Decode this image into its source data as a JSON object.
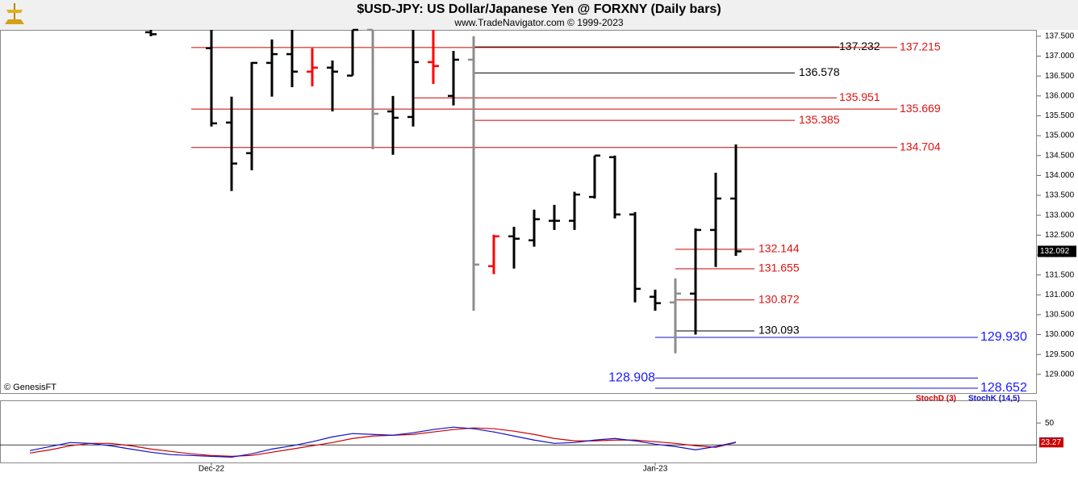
{
  "chart_data": [
    {
      "type": "ohlc",
      "title": "$USD-JPY:  US Dollar/Japanese Yen @ FORXNY  (Daily bars)",
      "subtitle": "www.TradeNavigator.com © 1999-2023",
      "source": "© GenesisFT",
      "categories": [
        null,
        null,
        null,
        null,
        null,
        null,
        null,
        null,
        null,
        "Dec-22",
        null,
        null,
        null,
        null,
        null,
        null,
        null,
        null,
        null,
        null,
        null,
        null,
        null,
        null,
        null,
        null,
        null,
        null,
        null,
        null,
        null,
        "Jan-23",
        null,
        null,
        null,
        null
      ],
      "open": [
        null,
        null,
        null,
        null,
        null,
        null,
        137.6,
        null,
        null,
        137.2,
        135.33,
        134.56,
        136.83,
        137.05,
        136.61,
        136.71,
        136.51,
        137.66,
        135.61,
        135.47,
        136.85,
        136.0,
        136.91,
        131.72,
        132.47,
        132.37,
        132.86,
        132.86,
        133.46,
        134.46,
        133.02,
        130.95,
        130.81,
        131.03,
        132.63,
        133.42
      ],
      "high": [
        null,
        null,
        null,
        null,
        null,
        null,
        137.66,
        null,
        null,
        137.66,
        135.98,
        136.85,
        137.42,
        137.66,
        137.2,
        136.89,
        137.66,
        137.66,
        136.0,
        137.66,
        137.66,
        137.13,
        137.5,
        132.51,
        132.71,
        133.14,
        133.26,
        133.59,
        134.5,
        134.5,
        133.08,
        131.13,
        131.41,
        132.67,
        134.07,
        134.78
      ],
      "low": [
        null,
        null,
        null,
        null,
        null,
        null,
        137.5,
        null,
        null,
        135.23,
        133.61,
        134.13,
        135.98,
        136.22,
        136.24,
        135.61,
        136.51,
        134.66,
        134.52,
        135.23,
        136.3,
        135.76,
        130.6,
        131.52,
        131.66,
        132.21,
        132.63,
        132.63,
        133.42,
        132.92,
        130.81,
        130.6,
        129.53,
        130.0,
        131.7,
        131.98
      ],
      "close": [
        null,
        null,
        null,
        null,
        null,
        null,
        137.55,
        null,
        null,
        135.31,
        134.3,
        136.83,
        137.05,
        136.61,
        136.71,
        136.61,
        137.66,
        135.55,
        135.45,
        136.85,
        136.75,
        136.91,
        131.76,
        132.47,
        132.41,
        132.9,
        132.86,
        133.52,
        134.5,
        133.02,
        131.15,
        130.79,
        131.03,
        132.63,
        133.42,
        132.092
      ],
      "colors": [
        null,
        null,
        null,
        null,
        null,
        null,
        "#000000",
        null,
        null,
        "#000000",
        "#000000",
        "#000000",
        "#000000",
        "#000000",
        "#ff0000",
        "#000000",
        "#000000",
        "#8c8c8c",
        "#000000",
        "#000000",
        "#ff0000",
        "#000000",
        "#8c8c8c",
        "#ff0000",
        "#000000",
        "#000000",
        "#000000",
        "#000000",
        "#000000",
        "#000000",
        "#000000",
        "#000000",
        "#8c8c8c",
        "#000000",
        "#000000",
        "#000000"
      ],
      "ylim": [
        128.53,
        137.66
      ],
      "yticks": [
        {
          "value": 129,
          "label": "129.000"
        },
        {
          "value": 129.5,
          "label": "129.500"
        },
        {
          "value": 130,
          "label": "130.000"
        },
        {
          "value": 130.5,
          "label": "130.500"
        },
        {
          "value": 131,
          "label": "131.000"
        },
        {
          "value": 131.5,
          "label": "131.500"
        },
        {
          "value": 132,
          "label": "132.000"
        },
        {
          "value": 132.5,
          "label": "132.500"
        },
        {
          "value": 133,
          "label": "133.000"
        },
        {
          "value": 133.5,
          "label": "133.500"
        },
        {
          "value": 134,
          "label": "134.000"
        },
        {
          "value": 134.5,
          "label": "134.500"
        },
        {
          "value": 135,
          "label": "135.000"
        },
        {
          "value": 135.5,
          "label": "135.500"
        },
        {
          "value": 136,
          "label": "136.000"
        },
        {
          "value": 136.5,
          "label": "136.500"
        },
        {
          "value": 137,
          "label": "137.000"
        },
        {
          "value": 137.5,
          "label": "137.500"
        }
      ],
      "levels": {
        "values": [
          137.232,
          137.215,
          136.578,
          135.951,
          135.669,
          135.385,
          134.704,
          132.144,
          131.655,
          130.872,
          130.093,
          129.93,
          128.908,
          128.652
        ],
        "value_labels": [
          "137.232",
          "137.215",
          "136.578",
          "135.951",
          "135.669",
          "135.385",
          "134.704",
          "132.144",
          "131.655",
          "130.872",
          "130.093",
          "129.930",
          "128.908",
          "128.652"
        ],
        "colors": [
          "#000000",
          "#cc0000",
          "#000000",
          "#cc0000",
          "#cc0000",
          "#cc0000",
          "#cc0000",
          "#cc0000",
          "#cc0000",
          "#cc0000",
          "#000000",
          "#1010c8",
          "#1010c8",
          "#1010c8"
        ]
      }
    },
    {
      "type": "line",
      "series": [
        {
          "name": "StochD (3)",
          "color": "#cc0000",
          "values": [
            8.9,
            13.3,
            18.9,
            22.2,
            22.2,
            18.9,
            14.4,
            11.1,
            7.8,
            5.6,
            4.4,
            5.6,
            10,
            14.4,
            18.9,
            23.3,
            28.9,
            32.2,
            33.3,
            34.4,
            37.8,
            41.1,
            43.3,
            42.2,
            38.9,
            34.4,
            28.9,
            25.6,
            25.6,
            26.7,
            26.7,
            24.4,
            22.2,
            18.9,
            16.7,
            23.27
          ]
        },
        {
          "name": "StochK (14,5)",
          "color": "#1010c8",
          "values": [
            12.2,
            17.8,
            23.3,
            22.2,
            18.9,
            14.4,
            10,
            6.7,
            5.6,
            4.4,
            3.3,
            7.8,
            14.4,
            18.9,
            24.4,
            31.1,
            35.6,
            34.4,
            33.3,
            36.7,
            41.1,
            44.4,
            42.2,
            37.8,
            32.2,
            26.7,
            22.2,
            23.3,
            26.7,
            28.9,
            25.6,
            21.1,
            17.8,
            13.3,
            17.8,
            23.75
          ]
        }
      ],
      "ylim": [
        -4,
        80
      ],
      "yticks": [
        50
      ],
      "hline": 20
    }
  ]
}
